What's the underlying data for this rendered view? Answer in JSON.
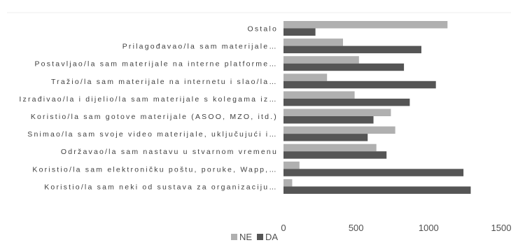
{
  "chart_data": {
    "type": "bar",
    "orientation": "horizontal",
    "categories": [
      "Ostalo",
      "Prilagođavao/la sam materijale…",
      "Postavljao/la sam materijale na interne platforme…",
      "Tražio/la sam materijale na internetu i slao/la…",
      "Izrađivao/la i dijelio/la sam materijale s kolegama iz…",
      "Koristio/la sam gotove materijale (ASOO, MZO, itd.)",
      "Snimao/la sam svoje video materijale, uključujući i…",
      "Održavao/la sam nastavu u stvarnom vremenu",
      "Koristio/la sam elektroničku poštu, poruke, Wapp,…",
      "Koristio/la sam neki od sustava za organizaciju…"
    ],
    "series": [
      {
        "name": "NE",
        "values": [
          1130,
          410,
          520,
          300,
          490,
          740,
          770,
          640,
          110,
          60
        ]
      },
      {
        "name": "DA",
        "values": [
          220,
          950,
          830,
          1050,
          870,
          620,
          580,
          710,
          1240,
          1290
        ]
      }
    ],
    "xlim": [
      0,
      1500
    ],
    "xticks": [
      "0",
      "500",
      "1000",
      "1500"
    ],
    "legend": "bottom-left",
    "grid": false,
    "colors": {
      "NE": "#b0b0b0",
      "DA": "#555555"
    }
  }
}
